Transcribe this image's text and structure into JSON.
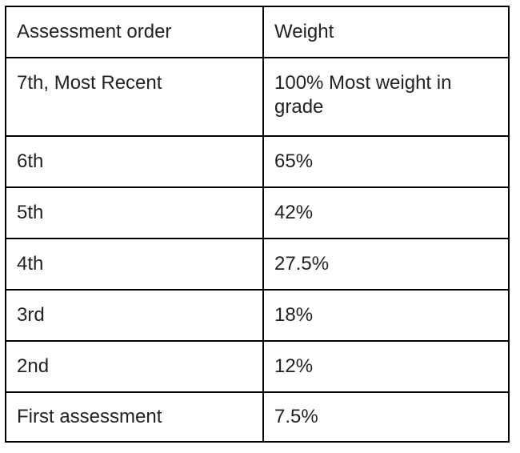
{
  "table": {
    "header": [
      "Assessment order",
      "Weight"
    ],
    "rows": [
      [
        "7th, Most Recent",
        "100% Most weight in grade"
      ],
      [
        "6th",
        "65%"
      ],
      [
        "5th",
        "42%"
      ],
      [
        "4th",
        "27.5%"
      ],
      [
        "3rd",
        "18%"
      ],
      [
        "2nd",
        "12%"
      ],
      [
        "First assessment",
        "7.5%"
      ]
    ]
  }
}
